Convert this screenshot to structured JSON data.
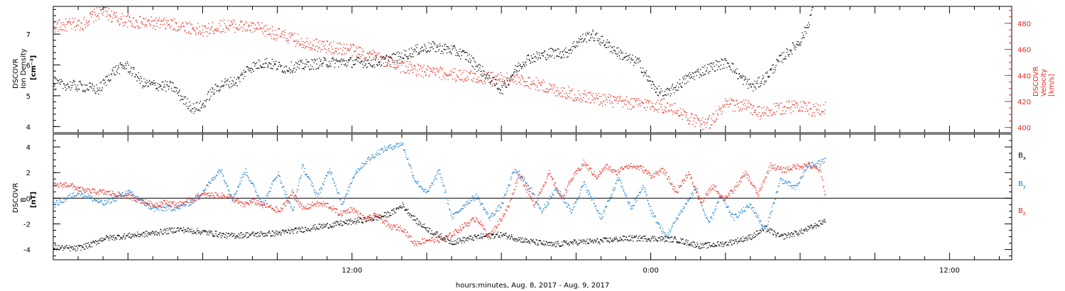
{
  "chart_data": [
    {
      "type": "scatter",
      "panel": "top",
      "ylabel_lines": [
        "DSCOVR",
        "Ion Density"
      ],
      "ylabel_unit": "[cm⁻³]",
      "ylim": [
        3.8,
        7.9
      ],
      "y_ticks": [
        4,
        5,
        6,
        7
      ],
      "y2label_lines": [
        "DSCOVR",
        "Velocity",
        "[km/s]"
      ],
      "y2lim": [
        396,
        493
      ],
      "y2_ticks": [
        400,
        420,
        440,
        460,
        480
      ],
      "colors": {
        "density": "#000000",
        "velocity": "#e8281e"
      },
      "series": [
        {
          "key": "density",
          "axis": "left",
          "knots": [
            [
              0,
              5.4
            ],
            [
              1.3,
              5.3
            ],
            [
              1.8,
              5.2
            ],
            [
              2.4,
              5.8
            ],
            [
              2.9,
              6.0
            ],
            [
              3.3,
              5.7
            ],
            [
              3.6,
              5.4
            ],
            [
              4.8,
              5.3
            ],
            [
              5.2,
              4.9
            ],
            [
              5.6,
              4.6
            ],
            [
              6.0,
              4.7
            ],
            [
              6.3,
              5.1
            ],
            [
              6.8,
              5.4
            ],
            [
              7.4,
              5.5
            ],
            [
              7.8,
              5.9
            ],
            [
              8.5,
              6.1
            ],
            [
              9.3,
              5.9
            ],
            [
              10.0,
              6.0
            ],
            [
              11.0,
              6.1
            ],
            [
              12.0,
              6.1
            ],
            [
              13.0,
              6.1
            ],
            [
              14.0,
              6.3
            ],
            [
              14.6,
              6.5
            ],
            [
              15.2,
              6.6
            ],
            [
              16.0,
              6.5
            ],
            [
              16.6,
              6.3
            ],
            [
              17.1,
              5.9
            ],
            [
              17.6,
              5.5
            ],
            [
              18.0,
              5.2
            ],
            [
              18.5,
              5.8
            ],
            [
              19.0,
              6.2
            ],
            [
              19.5,
              6.3
            ],
            [
              20.0,
              6.4
            ],
            [
              20.6,
              6.4
            ],
            [
              21.1,
              6.8
            ],
            [
              21.6,
              7.0
            ],
            [
              22.2,
              6.7
            ],
            [
              22.7,
              6.4
            ],
            [
              23.1,
              6.2
            ],
            [
              23.5,
              6.1
            ],
            [
              24.0,
              5.4
            ],
            [
              24.5,
              5.0
            ],
            [
              25.0,
              5.3
            ],
            [
              25.5,
              5.6
            ],
            [
              26.0,
              5.8
            ],
            [
              26.6,
              6.0
            ],
            [
              27.1,
              6.1
            ],
            [
              27.6,
              5.6
            ],
            [
              28.1,
              5.3
            ],
            [
              28.6,
              5.6
            ],
            [
              29.2,
              6.2
            ],
            [
              29.6,
              6.5
            ],
            [
              30.0,
              6.8
            ],
            [
              30.3,
              7.3
            ],
            [
              30.5,
              7.9
            ]
          ]
        },
        {
          "key": "velocity",
          "axis": "right",
          "knots": [
            [
              0,
              478
            ],
            [
              1.2,
              480
            ],
            [
              1.5,
              485
            ],
            [
              2.0,
              490
            ],
            [
              2.5,
              484
            ],
            [
              3.3,
              481
            ],
            [
              4.3,
              480
            ],
            [
              5.3,
              478
            ],
            [
              6.0,
              474
            ],
            [
              6.5,
              477
            ],
            [
              7.0,
              479
            ],
            [
              7.5,
              478
            ],
            [
              8.3,
              476
            ],
            [
              9.0,
              472
            ],
            [
              10.0,
              466
            ],
            [
              11.0,
              462
            ],
            [
              12.0,
              460
            ],
            [
              13.0,
              454
            ],
            [
              14.0,
              447
            ],
            [
              15.0,
              443
            ],
            [
              16.0,
              441
            ],
            [
              17.0,
              439
            ],
            [
              18.0,
              438
            ],
            [
              19.0,
              436
            ],
            [
              20.0,
              430
            ],
            [
              21.0,
              425
            ],
            [
              22.0,
              422
            ],
            [
              23.0,
              419
            ],
            [
              24.0,
              418
            ],
            [
              25.0,
              414
            ],
            [
              25.6,
              407
            ],
            [
              26.0,
              403
            ],
            [
              26.4,
              405
            ],
            [
              27.0,
              418
            ],
            [
              27.8,
              417
            ],
            [
              28.4,
              411
            ],
            [
              29.0,
              414
            ],
            [
              30.0,
              418
            ],
            [
              30.5,
              413
            ],
            [
              31.0,
              416
            ]
          ]
        }
      ]
    },
    {
      "type": "scatter",
      "panel": "bottom",
      "ylabel_lines": [
        "DSCOVR",
        "B"
      ],
      "ylabel_unit": "[nT]",
      "ylim": [
        -4.8,
        5.0
      ],
      "y_ticks": [
        -4,
        -2,
        0,
        2,
        4
      ],
      "zero_line": true,
      "series": [
        {
          "name": "Bx",
          "color": "#000000",
          "knots": [
            [
              0,
              -3.8
            ],
            [
              0.9,
              -3.9
            ],
            [
              1.5,
              -3.6
            ],
            [
              2.0,
              -3.1
            ],
            [
              3.0,
              -2.9
            ],
            [
              4.0,
              -2.7
            ],
            [
              5.0,
              -2.4
            ],
            [
              6.0,
              -2.6
            ],
            [
              7.0,
              -2.9
            ],
            [
              8.0,
              -2.8
            ],
            [
              9.0,
              -2.7
            ],
            [
              10.0,
              -2.4
            ],
            [
              11.0,
              -2.1
            ],
            [
              12.0,
              -1.8
            ],
            [
              13.0,
              -1.5
            ],
            [
              13.6,
              -1.1
            ],
            [
              14.0,
              -0.5
            ],
            [
              14.6,
              -1.8
            ],
            [
              15.2,
              -2.6
            ],
            [
              16.0,
              -3.4
            ],
            [
              17.0,
              -3.0
            ],
            [
              18.0,
              -2.8
            ],
            [
              19.0,
              -3.3
            ],
            [
              20.0,
              -3.6
            ],
            [
              21.0,
              -3.4
            ],
            [
              22.0,
              -3.3
            ],
            [
              23.0,
              -3.1
            ],
            [
              24.0,
              -3.1
            ],
            [
              25.0,
              -3.2
            ],
            [
              26.0,
              -3.7
            ],
            [
              27.0,
              -3.5
            ],
            [
              28.0,
              -3.0
            ],
            [
              28.6,
              -2.3
            ],
            [
              29.2,
              -3.0
            ],
            [
              30.0,
              -2.6
            ],
            [
              30.5,
              -2.2
            ],
            [
              31.0,
              -1.7
            ]
          ]
        },
        {
          "name": "By",
          "color": "#1f7fd0",
          "knots": [
            [
              0,
              -0.5
            ],
            [
              1.0,
              0.5
            ],
            [
              2.0,
              -0.4
            ],
            [
              3.0,
              0.5
            ],
            [
              4.0,
              -0.8
            ],
            [
              5.0,
              -0.7
            ],
            [
              5.6,
              -0.2
            ],
            [
              6.1,
              0.8
            ],
            [
              6.7,
              2.3
            ],
            [
              7.2,
              0.0
            ],
            [
              7.7,
              2.2
            ],
            [
              8.4,
              -0.5
            ],
            [
              9.0,
              2.0
            ],
            [
              9.6,
              -1.0
            ],
            [
              10.0,
              2.5
            ],
            [
              10.6,
              0.2
            ],
            [
              11.1,
              2.3
            ],
            [
              11.6,
              -0.5
            ],
            [
              12.1,
              2.0
            ],
            [
              12.6,
              3.0
            ],
            [
              13.2,
              3.8
            ],
            [
              14.0,
              4.3
            ],
            [
              14.5,
              1.5
            ],
            [
              15.0,
              0.4
            ],
            [
              15.5,
              2.2
            ],
            [
              16.0,
              -1.5
            ],
            [
              16.6,
              -0.3
            ],
            [
              17.0,
              0.2
            ],
            [
              17.5,
              -1.5
            ],
            [
              18.0,
              -0.5
            ],
            [
              18.5,
              2.2
            ],
            [
              19.0,
              1.3
            ],
            [
              19.6,
              -1.0
            ],
            [
              20.2,
              0.8
            ],
            [
              20.8,
              -1.0
            ],
            [
              21.3,
              1.2
            ],
            [
              22.0,
              -1.5
            ],
            [
              22.7,
              1.6
            ],
            [
              23.2,
              -0.8
            ],
            [
              23.7,
              1.0
            ],
            [
              24.0,
              -1.0
            ],
            [
              24.6,
              -3.0
            ],
            [
              25.2,
              -1.0
            ],
            [
              25.8,
              0.8
            ],
            [
              26.3,
              -2.0
            ],
            [
              26.8,
              0.2
            ],
            [
              27.3,
              -1.5
            ],
            [
              28.0,
              -0.5
            ],
            [
              28.6,
              -2.5
            ],
            [
              29.2,
              1.5
            ],
            [
              29.8,
              0.8
            ],
            [
              30.3,
              2.6
            ],
            [
              30.8,
              2.8
            ],
            [
              31.0,
              3.0
            ]
          ]
        },
        {
          "name": "Bz",
          "color": "#e8281e",
          "knots": [
            [
              0,
              1.0
            ],
            [
              0.6,
              1.1
            ],
            [
              1.2,
              0.6
            ],
            [
              2.0,
              0.5
            ],
            [
              3.0,
              0.2
            ],
            [
              4.0,
              -0.5
            ],
            [
              4.5,
              -0.3
            ],
            [
              5.0,
              -0.5
            ],
            [
              6.0,
              0.3
            ],
            [
              7.0,
              0.2
            ],
            [
              7.6,
              -0.5
            ],
            [
              8.0,
              -0.2
            ],
            [
              8.6,
              -0.6
            ],
            [
              9.1,
              -1.0
            ],
            [
              9.6,
              0.5
            ],
            [
              10.0,
              -0.8
            ],
            [
              10.5,
              -0.4
            ],
            [
              11.0,
              -0.5
            ],
            [
              11.5,
              -1.2
            ],
            [
              12.0,
              -0.8
            ],
            [
              12.5,
              -1.6
            ],
            [
              13.0,
              -1.3
            ],
            [
              13.5,
              -2.2
            ],
            [
              14.0,
              -2.3
            ],
            [
              14.5,
              -3.5
            ],
            [
              15.0,
              -3.2
            ],
            [
              15.6,
              -3.2
            ],
            [
              16.0,
              -2.8
            ],
            [
              16.5,
              -2.1
            ],
            [
              17.0,
              -1.5
            ],
            [
              17.5,
              -3.0
            ],
            [
              18.0,
              -1.5
            ],
            [
              18.3,
              -0.5
            ],
            [
              18.7,
              2.0
            ],
            [
              19.3,
              -0.5
            ],
            [
              19.9,
              2.0
            ],
            [
              20.4,
              0.0
            ],
            [
              20.8,
              1.5
            ],
            [
              21.3,
              2.8
            ],
            [
              21.8,
              1.7
            ],
            [
              22.2,
              2.5
            ],
            [
              22.6,
              2.0
            ],
            [
              23.0,
              2.6
            ],
            [
              23.6,
              2.4
            ],
            [
              24.0,
              1.8
            ],
            [
              24.5,
              2.2
            ],
            [
              25.0,
              0.5
            ],
            [
              25.5,
              2.0
            ],
            [
              26.0,
              -0.3
            ],
            [
              26.5,
              1.0
            ],
            [
              26.9,
              0.0
            ],
            [
              27.3,
              0.6
            ],
            [
              27.8,
              2.0
            ],
            [
              28.3,
              0.3
            ],
            [
              28.8,
              2.6
            ],
            [
              29.3,
              2.2
            ],
            [
              29.8,
              2.5
            ],
            [
              30.3,
              2.6
            ],
            [
              30.8,
              2.2
            ],
            [
              31.0,
              0.2
            ]
          ]
        }
      ],
      "legend": [
        {
          "text": "B",
          "sub": "x",
          "color": "#000000"
        },
        {
          "text": "B",
          "sub": "y",
          "color": "#1f7fd0"
        },
        {
          "text": "B",
          "sub": "z",
          "color": "#e8281e"
        }
      ]
    }
  ],
  "x_axis": {
    "tick_labels": [
      "12:00",
      "0:00",
      "12:00"
    ],
    "tick_hours": [
      12,
      24,
      36
    ],
    "xlabel": "hours:minutes, Aug. 8, 2017 - Aug. 9, 2017",
    "xlim": [
      0,
      38.5
    ]
  }
}
